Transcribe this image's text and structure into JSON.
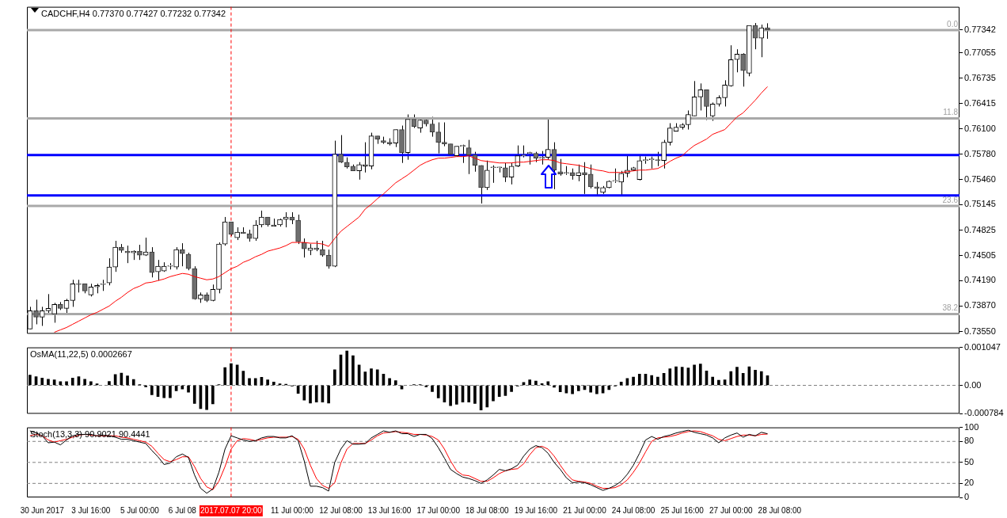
{
  "chart_data": [
    {
      "type": "candlestick",
      "title": "CADCHF,H4 0.77370 0.77427 0.77232 0.77342",
      "categories": [
        null,
        null,
        "30 Jun 2017",
        null,
        null,
        null,
        null,
        null,
        null,
        null,
        "3 Jul 16:00",
        null,
        null,
        null,
        null,
        null,
        null,
        null,
        "5 Jul 00:00",
        null,
        null,
        null,
        null,
        null,
        null,
        "6 Jul 08",
        null,
        null,
        null,
        null,
        null,
        null,
        null,
        "2017.07.07 20:00",
        null,
        null,
        null,
        null,
        null,
        null,
        null,
        null,
        null,
        "11 Jul 00:00",
        null,
        null,
        null,
        null,
        null,
        null,
        null,
        "12 Jul 08:00",
        null,
        null,
        null,
        null,
        null,
        null,
        null,
        "13 Jul 16:00",
        null,
        null,
        null,
        null,
        null,
        null,
        null,
        "17 Jul 00:00",
        null,
        null,
        null,
        null,
        null,
        null,
        null,
        "18 Jul 08:00",
        null,
        null,
        null,
        null,
        null,
        null,
        null,
        "19 Jul 16:00",
        null,
        null,
        null,
        null,
        null,
        null,
        null,
        "21 Jul 00:00",
        null,
        null,
        null,
        null,
        null,
        null,
        null,
        "24 Jul 08:00",
        null,
        null,
        null,
        null,
        null,
        null,
        null,
        "25 Jul 16:00",
        null,
        null,
        null,
        null,
        null,
        null,
        null,
        "27 Jul 00:00",
        null,
        null,
        null,
        null,
        null,
        null,
        null,
        "28 Jul 08:00",
        null,
        null,
        null,
        null,
        null,
        null,
        null,
        null,
        null,
        null,
        null,
        null,
        null,
        null,
        null,
        null,
        null,
        null,
        null,
        null,
        null,
        null,
        null,
        null,
        null,
        null,
        null,
        null,
        null
      ],
      "ohlc": [
        [
          0.7358,
          0.7386,
          0.7358,
          0.7381
        ],
        [
          0.7381,
          0.7395,
          0.7364,
          0.7373
        ],
        [
          0.7373,
          0.7386,
          0.7362,
          0.7381
        ],
        [
          0.7381,
          0.7402,
          0.7378,
          0.7384
        ],
        [
          0.7377,
          0.7391,
          0.7366,
          0.7389
        ],
        [
          0.7389,
          0.7392,
          0.7382,
          0.7384
        ],
        [
          0.7384,
          0.7396,
          0.7378,
          0.7394
        ],
        [
          0.7394,
          0.742,
          0.7386,
          0.7415
        ],
        [
          0.7415,
          0.742,
          0.7404,
          0.7414
        ],
        [
          0.7415,
          0.7415,
          0.7403,
          0.7406
        ],
        [
          0.7401,
          0.7415,
          0.7399,
          0.7411
        ],
        [
          0.7411,
          0.7415,
          0.7403,
          0.7413
        ],
        [
          0.7414,
          0.742,
          0.7406,
          0.7415
        ],
        [
          0.7416,
          0.7447,
          0.7413,
          0.7436
        ],
        [
          0.7436,
          0.7469,
          0.743,
          0.7461
        ],
        [
          0.7461,
          0.7465,
          0.7454,
          0.7457
        ],
        [
          0.7456,
          0.7463,
          0.7441,
          0.7454
        ],
        [
          0.7454,
          0.7457,
          0.7445,
          0.7456
        ],
        [
          0.7456,
          0.7464,
          0.7445,
          0.7451
        ],
        [
          0.7451,
          0.7473,
          0.745,
          0.7455
        ],
        [
          0.7455,
          0.7461,
          0.7423,
          0.7429
        ],
        [
          0.743,
          0.7445,
          0.7419,
          0.7437
        ],
        [
          0.7431,
          0.7442,
          0.743,
          0.7437
        ],
        [
          0.7437,
          0.7441,
          0.7433,
          0.7437
        ],
        [
          0.7436,
          0.7461,
          0.7433,
          0.7458
        ],
        [
          0.7458,
          0.7466,
          0.7437,
          0.7453
        ],
        [
          0.7452,
          0.7454,
          0.7432,
          0.7434
        ],
        [
          0.7434,
          0.7437,
          0.7395,
          0.7396
        ],
        [
          0.7396,
          0.7404,
          0.7391,
          0.7401
        ],
        [
          0.7401,
          0.7404,
          0.7392,
          0.7394
        ],
        [
          0.7394,
          0.7414,
          0.7393,
          0.7408
        ],
        [
          0.7408,
          0.7467,
          0.7403,
          0.7465
        ],
        [
          0.7465,
          0.7499,
          0.7463,
          0.7493
        ],
        [
          0.7493,
          0.7493,
          0.7475,
          0.7477
        ],
        [
          0.7473,
          0.7486,
          0.747,
          0.748
        ],
        [
          0.748,
          0.7486,
          0.7478,
          0.7478
        ],
        [
          0.7478,
          0.7483,
          0.7468,
          0.7472
        ],
        [
          0.7472,
          0.7495,
          0.7469,
          0.7489
        ],
        [
          0.7489,
          0.7507,
          0.7486,
          0.7499
        ],
        [
          0.7499,
          0.7499,
          0.7487,
          0.7489
        ],
        [
          0.7487,
          0.7497,
          0.7487,
          0.7489
        ],
        [
          0.7489,
          0.7497,
          0.7487,
          0.7496
        ],
        [
          0.7496,
          0.7505,
          0.7486,
          0.7499
        ],
        [
          0.7499,
          0.7505,
          0.749,
          0.7495
        ],
        [
          0.7495,
          0.7502,
          0.7465,
          0.7468
        ],
        [
          0.7467,
          0.7472,
          0.7448,
          0.7459
        ],
        [
          0.7457,
          0.7465,
          0.7451,
          0.746
        ],
        [
          0.746,
          0.7469,
          0.7456,
          0.7458
        ],
        [
          0.7458,
          0.7469,
          0.7449,
          0.7451
        ],
        [
          0.7451,
          0.7458,
          0.7434,
          0.7437
        ],
        [
          0.7437,
          0.7595,
          0.7436,
          0.7578
        ],
        [
          0.7578,
          0.7602,
          0.7567,
          0.7568
        ],
        [
          0.7568,
          0.7574,
          0.756,
          0.7562
        ],
        [
          0.7563,
          0.7565,
          0.7557,
          0.7557
        ],
        [
          0.7557,
          0.7568,
          0.7546,
          0.7565
        ],
        [
          0.7563,
          0.7593,
          0.7555,
          0.7565
        ],
        [
          0.7563,
          0.7605,
          0.7559,
          0.7601
        ],
        [
          0.7601,
          0.7601,
          0.7591,
          0.7597
        ],
        [
          0.7595,
          0.76,
          0.7591,
          0.7593
        ],
        [
          0.7593,
          0.7598,
          0.7589,
          0.7591
        ],
        [
          0.7592,
          0.7609,
          0.7587,
          0.7609
        ],
        [
          0.7609,
          0.7614,
          0.7567,
          0.758
        ],
        [
          0.758,
          0.7628,
          0.7571,
          0.7622
        ],
        [
          0.7622,
          0.7628,
          0.7611,
          0.7613
        ],
        [
          0.7611,
          0.7624,
          0.7605,
          0.7621
        ],
        [
          0.7621,
          0.7623,
          0.7613,
          0.7616
        ],
        [
          0.7616,
          0.7625,
          0.76,
          0.7606
        ],
        [
          0.7606,
          0.7618,
          0.7579,
          0.7593
        ],
        [
          0.7593,
          0.7618,
          0.7588,
          0.7591
        ],
        [
          0.7591,
          0.7591,
          0.7577,
          0.7578
        ],
        [
          0.7576,
          0.7588,
          0.7575,
          0.7588
        ],
        [
          0.7588,
          0.759,
          0.7567,
          0.7588
        ],
        [
          0.7586,
          0.7596,
          0.7553,
          0.7577
        ],
        [
          0.7577,
          0.7581,
          0.7556,
          0.7564
        ],
        [
          0.7564,
          0.7564,
          0.7516,
          0.7536
        ],
        [
          0.7536,
          0.757,
          0.7533,
          0.7558
        ],
        [
          0.7561,
          0.7564,
          0.7542,
          0.7562
        ],
        [
          0.7561,
          0.7562,
          0.7555,
          0.7561
        ],
        [
          0.7561,
          0.7567,
          0.7543,
          0.7549
        ],
        [
          0.7549,
          0.7567,
          0.754,
          0.7563
        ],
        [
          0.7563,
          0.7589,
          0.7562,
          0.7576
        ],
        [
          0.7576,
          0.7589,
          0.7574,
          0.7577
        ],
        [
          0.7579,
          0.7581,
          0.7565,
          0.758
        ],
        [
          0.7579,
          0.7581,
          0.7568,
          0.7573
        ],
        [
          0.7573,
          0.7582,
          0.7565,
          0.7574
        ],
        [
          0.7574,
          0.7624,
          0.7571,
          0.7584
        ],
        [
          0.7584,
          0.7593,
          0.7534,
          0.7558
        ],
        [
          0.7556,
          0.7572,
          0.7551,
          0.7553
        ],
        [
          0.7554,
          0.7563,
          0.7552,
          0.7554
        ],
        [
          0.7555,
          0.756,
          0.7546,
          0.7551
        ],
        [
          0.7551,
          0.7565,
          0.7544,
          0.7555
        ],
        [
          0.7555,
          0.7568,
          0.7528,
          0.7552
        ],
        [
          0.7553,
          0.7565,
          0.7535,
          0.7537
        ],
        [
          0.7537,
          0.7543,
          0.7527,
          0.7535
        ],
        [
          0.753,
          0.7538,
          0.7528,
          0.7536
        ],
        [
          0.7536,
          0.7545,
          0.7535,
          0.7544
        ],
        [
          0.7544,
          0.756,
          0.7542,
          0.7545
        ],
        [
          0.7543,
          0.7557,
          0.7526,
          0.7554
        ],
        [
          0.7554,
          0.7577,
          0.7549,
          0.7558
        ],
        [
          0.7558,
          0.7562,
          0.7557,
          0.7561
        ],
        [
          0.7546,
          0.7577,
          0.7545,
          0.757
        ],
        [
          0.757,
          0.7575,
          0.7566,
          0.7571
        ],
        [
          0.7571,
          0.7575,
          0.756,
          0.7571
        ],
        [
          0.7571,
          0.7581,
          0.7563,
          0.757
        ],
        [
          0.757,
          0.7596,
          0.756,
          0.7593
        ],
        [
          0.7593,
          0.7617,
          0.7589,
          0.7611
        ],
        [
          0.7607,
          0.7617,
          0.7607,
          0.7612
        ],
        [
          0.7612,
          0.7617,
          0.7609,
          0.7615
        ],
        [
          0.7615,
          0.7633,
          0.7609,
          0.7628
        ],
        [
          0.7626,
          0.767,
          0.7626,
          0.765
        ],
        [
          0.765,
          0.7667,
          0.7633,
          0.7659
        ],
        [
          0.7659,
          0.7659,
          0.7621,
          0.7638
        ],
        [
          0.7626,
          0.7643,
          0.762,
          0.7641
        ],
        [
          0.7641,
          0.7652,
          0.7638,
          0.7649
        ],
        [
          0.7649,
          0.7671,
          0.7638,
          0.7665
        ],
        [
          0.7664,
          0.7715,
          0.7663,
          0.7697
        ],
        [
          0.7697,
          0.771,
          0.7681,
          0.7704
        ],
        [
          0.7704,
          0.7705,
          0.7663,
          0.7683
        ],
        [
          0.768,
          0.774,
          0.7676,
          0.774
        ],
        [
          0.774,
          0.7743,
          0.771,
          0.7724
        ],
        [
          0.7724,
          0.7741,
          0.77,
          0.7737
        ],
        [
          0.7737,
          0.77427,
          0.77232,
          0.77342
        ],
        null,
        null,
        null,
        null,
        null,
        null,
        null,
        null,
        null,
        null,
        null,
        null,
        null,
        null,
        null,
        null,
        null,
        null,
        null,
        null,
        null,
        null,
        null,
        null,
        null,
        null,
        null,
        null,
        null,
        null,
        null
      ],
      "series": [
        {
          "type": "line",
          "color": "#ff0000",
          "values": [
            null,
            null,
            null,
            null,
            0.7354,
            0.7357,
            0.736,
            0.7364,
            0.7368,
            0.7372,
            0.7376,
            0.7379,
            0.7383,
            0.7387,
            0.7393,
            0.7398,
            0.7404,
            0.7409,
            0.7412,
            0.7416,
            0.7417,
            0.7419,
            0.7421,
            0.7424,
            0.7426,
            0.7428,
            0.7427,
            0.7424,
            0.7422,
            0.742,
            0.7421,
            0.7424,
            0.7429,
            0.7434,
            0.7437,
            0.7442,
            0.7445,
            0.7449,
            0.7452,
            0.7456,
            0.7458,
            0.746,
            0.7463,
            0.7467,
            0.7467,
            0.7467,
            0.7466,
            0.7466,
            0.7465,
            0.7462,
            0.7472,
            0.7481,
            0.7487,
            0.7493,
            0.7499,
            0.7509,
            0.7515,
            0.7522,
            0.7528,
            0.7535,
            0.7542,
            0.7547,
            0.7552,
            0.7558,
            0.7564,
            0.7568,
            0.7571,
            0.7573,
            0.7573,
            0.7574,
            0.7575,
            0.7575,
            0.7576,
            0.7573,
            0.757,
            0.7569,
            0.7568,
            0.7567,
            0.7567,
            0.7567,
            0.7568,
            0.7568,
            0.7569,
            0.757,
            0.7571,
            0.7571,
            0.757,
            0.7567,
            0.7566,
            0.7565,
            0.7564,
            0.7562,
            0.756,
            0.7558,
            0.7557,
            0.7555,
            0.7555,
            0.7555,
            0.7556,
            0.7557,
            0.7558,
            0.7558,
            0.7559,
            0.756,
            0.7564,
            0.7569,
            0.7573,
            0.7576,
            0.7583,
            0.7589,
            0.7593,
            0.7597,
            0.7603,
            0.7606,
            0.7609,
            0.7617,
            0.7625,
            0.763,
            0.7638,
            0.7646,
            0.7655,
            0.7663,
            null,
            null,
            null,
            null,
            null,
            null,
            null,
            null,
            null,
            null,
            null,
            null,
            null,
            null,
            null,
            null,
            null,
            null,
            null,
            null,
            null,
            null,
            null,
            null,
            null,
            null,
            null,
            null,
            null,
            null,
            null
          ]
        }
      ],
      "ylim": [
        0.73521,
        0.77634
      ],
      "yticks": [
        {
          "value": 0.7355,
          "label": "0.73550"
        },
        {
          "value": 0.7387,
          "label": "0.73870"
        },
        {
          "value": 0.7419,
          "label": "0.74190"
        },
        {
          "value": 0.74505,
          "label": "0.74505"
        },
        {
          "value": 0.74825,
          "label": "0.74825"
        },
        {
          "value": 0.75145,
          "label": "0.75145"
        },
        {
          "value": 0.7546,
          "label": "0.75460"
        },
        {
          "value": 0.7578,
          "label": "0.75780"
        },
        {
          "value": 0.761,
          "label": "0.76100"
        },
        {
          "value": 0.76415,
          "label": "0.76415"
        },
        {
          "value": 0.76735,
          "label": "0.76735"
        },
        {
          "value": 0.77055,
          "label": "0.77055"
        },
        {
          "value": 0.77342,
          "label": "0.77342"
        }
      ],
      "tick_labels": "y",
      "annotations": [
        {
          "text": "0.0",
          "y": 0.7734
        },
        {
          "text": "11.8",
          "y": 0.7623
        },
        {
          "text": "23.6",
          "y": 0.7513
        },
        {
          "text": "38.2",
          "y": 0.7377
        }
      ],
      "ref_lines": [
        {
          "axis": "y",
          "value": 0.7734,
          "color": "#a9a9a9"
        },
        {
          "axis": "y",
          "value": 0.7623,
          "color": "#a9a9a9"
        },
        {
          "axis": "y",
          "value": 0.7513,
          "color": "#a9a9a9"
        },
        {
          "axis": "y",
          "value": 0.7377,
          "color": "#a9a9a9"
        },
        {
          "axis": "y",
          "value": 0.7577,
          "color": "#0000ff"
        },
        {
          "axis": "y",
          "value": 0.7526,
          "color": "#0000ff"
        },
        {
          "axis": "x",
          "value": "2017.07.07 20:00",
          "color": "#ff0000",
          "line_style": "dashed"
        }
      ]
    },
    {
      "type": "bar",
      "title": "OsMA(11,22,5) 0.0002667",
      "categories": [
        null,
        null,
        "30 Jun 2017",
        null,
        null,
        null,
        null,
        null,
        null,
        null,
        "3 Jul 16:00",
        null,
        null,
        null,
        null,
        null,
        null,
        null,
        "5 Jul 00:00",
        null,
        null,
        null,
        null,
        null,
        null,
        "6 Jul 08",
        null,
        null,
        null,
        null,
        null,
        null,
        null,
        "2017.07.07 20:00",
        null,
        null,
        null,
        null,
        null,
        null,
        null,
        null,
        null,
        "11 Jul 00:00",
        null,
        null,
        null,
        null,
        null,
        null,
        null,
        "12 Jul 08:00",
        null,
        null,
        null,
        null,
        null,
        null,
        null,
        "13 Jul 16:00",
        null,
        null,
        null,
        null,
        null,
        null,
        null,
        "17 Jul 00:00",
        null,
        null,
        null,
        null,
        null,
        null,
        null,
        "18 Jul 08:00",
        null,
        null,
        null,
        null,
        null,
        null,
        null,
        "19 Jul 16:00",
        null,
        null,
        null,
        null,
        null,
        null,
        null,
        "21 Jul 00:00",
        null,
        null,
        null,
        null,
        null,
        null,
        null,
        "24 Jul 08:00",
        null,
        null,
        null,
        null,
        null,
        null,
        null,
        "25 Jul 16:00",
        null,
        null,
        null,
        null,
        null,
        null,
        null,
        "27 Jul 00:00",
        null,
        null,
        null,
        null,
        null,
        null,
        null,
        "28 Jul 08:00",
        null,
        null,
        null,
        null,
        null,
        null,
        null,
        null,
        null,
        null,
        null,
        null,
        null,
        null,
        null,
        null,
        null,
        null,
        null,
        null,
        null,
        null,
        null,
        null,
        null,
        null,
        null,
        null,
        null
      ],
      "values": [
        0.00028,
        0.00024,
        0.0002,
        0.00017,
        0.00015,
        0.0001,
        0.0001,
        0.0002,
        0.00024,
        0.00017,
        0.0001,
        4e-05,
        null,
        0.00011,
        0.0003,
        0.00034,
        0.00026,
        0.00016,
        2e-05,
        -4e-05,
        -0.00026,
        -0.00031,
        -0.00034,
        -0.00034,
        -0.00015,
        -0.0001,
        -0.00019,
        -0.0005,
        -0.00064,
        -0.00067,
        -0.00051,
        2e-05,
        0.00049,
        0.0006,
        0.00056,
        0.00039,
        0.00019,
        0.00019,
        0.00022,
        0.00015,
        9e-05,
        4e-05,
        3e-05,
        -2e-05,
        -0.00022,
        -0.00041,
        -0.00049,
        -0.00046,
        -0.00046,
        -0.00049,
        0.00043,
        0.00084,
        0.00095,
        0.00082,
        0.00056,
        0.00037,
        0.00046,
        0.00043,
        0.00031,
        0.00019,
        0.00013,
        -0.0001,
        null,
        2e-05,
        2e-05,
        -4e-05,
        -0.00017,
        -0.00035,
        -0.00046,
        -0.00056,
        -0.00052,
        -0.00046,
        -0.00046,
        -0.0005,
        -0.00068,
        -0.0006,
        -0.00043,
        -0.00031,
        -0.00028,
        -0.00017,
        -2e-05,
        8e-05,
        0.00015,
        0.00012,
        5e-05,
        0.0001,
        -5e-05,
        -0.00018,
        -0.00021,
        -0.00023,
        -0.00015,
        -0.00012,
        -0.00019,
        -0.00023,
        -0.00021,
        -0.00012,
        -2e-05,
        9e-05,
        0.00019,
        0.00023,
        0.00031,
        0.00031,
        0.00027,
        0.00023,
        0.00033,
        0.00046,
        0.00051,
        0.0005,
        0.00048,
        0.00056,
        0.00059,
        0.0004,
        0.00023,
        0.00014,
        0.00015,
        0.00038,
        0.0005,
        0.00033,
        0.00051,
        0.00042,
        0.00038,
        0.0002667,
        null,
        null,
        null,
        null,
        null,
        null,
        null,
        null,
        null,
        null,
        null,
        null,
        null,
        null,
        null,
        null,
        null,
        null,
        null,
        null,
        null,
        null,
        null,
        null,
        null,
        null,
        null,
        null,
        null,
        null,
        null
      ],
      "color": "#000000",
      "ylim": [
        -0.000784,
        0.001047
      ],
      "yticks": [
        {
          "value": 0.001047,
          "label": "0.001047"
        },
        {
          "value": 0,
          "label": "0.00"
        },
        {
          "value": -0.000784,
          "label": "-0.000784"
        }
      ],
      "tick_labels": "y",
      "ref_lines": [
        {
          "axis": "y",
          "value": 0,
          "color": "#808080",
          "line_style": "dashed"
        },
        {
          "axis": "x",
          "value": "2017.07.07 20:00",
          "color": "#ff0000",
          "line_style": "dashed"
        }
      ]
    },
    {
      "type": "line",
      "title": "Stoch(13,3,3) 90.9021 90.4441",
      "categories": [
        null,
        null,
        "30 Jun 2017",
        null,
        null,
        null,
        null,
        null,
        null,
        null,
        "3 Jul 16:00",
        null,
        null,
        null,
        null,
        null,
        null,
        null,
        "5 Jul 00:00",
        null,
        null,
        null,
        null,
        null,
        null,
        "6 Jul 08",
        null,
        null,
        null,
        null,
        null,
        null,
        null,
        "2017.07.07 20:00",
        null,
        null,
        null,
        null,
        null,
        null,
        null,
        null,
        null,
        "11 Jul 00:00",
        null,
        null,
        null,
        null,
        null,
        null,
        null,
        "12 Jul 08:00",
        null,
        null,
        null,
        null,
        null,
        null,
        null,
        "13 Jul 16:00",
        null,
        null,
        null,
        null,
        null,
        null,
        null,
        "17 Jul 00:00",
        null,
        null,
        null,
        null,
        null,
        null,
        null,
        "18 Jul 08:00",
        null,
        null,
        null,
        null,
        null,
        null,
        null,
        "19 Jul 16:00",
        null,
        null,
        null,
        null,
        null,
        null,
        null,
        "21 Jul 00:00",
        null,
        null,
        null,
        null,
        null,
        null,
        null,
        "24 Jul 08:00",
        null,
        null,
        null,
        null,
        null,
        null,
        null,
        "25 Jul 16:00",
        null,
        null,
        null,
        null,
        null,
        null,
        null,
        "27 Jul 00:00",
        null,
        null,
        null,
        null,
        null,
        null,
        null,
        "28 Jul 08:00",
        null,
        null,
        null,
        null,
        null,
        null,
        null,
        null,
        null,
        null,
        null,
        null,
        null,
        null,
        null,
        null,
        null,
        null,
        null,
        null,
        null,
        null,
        null,
        null,
        null,
        null,
        null,
        null,
        null
      ],
      "series": [
        {
          "color": "#000000",
          "values": [
            95,
            92,
            88,
            78,
            79,
            75,
            82,
            88,
            90,
            90,
            90,
            88,
            89,
            88,
            86,
            83,
            83,
            81,
            79,
            77,
            67,
            58,
            47,
            49,
            58,
            62,
            57,
            32,
            13,
            6,
            12,
            36,
            69,
            88,
            85,
            82,
            80,
            81,
            85,
            87,
            87,
            85,
            85,
            88,
            81,
            52,
            16,
            16,
            14,
            9,
            50,
            69,
            81,
            76,
            76,
            77,
            85,
            90,
            95,
            93,
            95,
            91,
            91,
            87,
            90,
            90,
            84,
            71,
            56,
            40,
            34,
            29,
            27,
            24,
            20,
            25,
            32,
            40,
            38,
            41,
            46,
            59,
            69,
            74,
            71,
            63,
            50,
            40,
            28,
            21,
            22,
            21,
            18,
            14,
            10,
            13,
            17,
            23,
            33,
            46,
            63,
            82,
            87,
            83,
            87,
            89,
            92,
            94,
            96,
            93,
            91,
            89,
            85,
            78,
            85,
            89,
            92,
            86,
            90,
            88,
            93,
            90.9021,
            null,
            null,
            null,
            null,
            null,
            null,
            null,
            null,
            null,
            null,
            null,
            null,
            null,
            null,
            null,
            null,
            null,
            null,
            null,
            null,
            null,
            null,
            null,
            null,
            null,
            null,
            null,
            null,
            null,
            null,
            null
          ]
        },
        {
          "color": "#ff0000",
          "values": [
            88,
            90,
            88,
            82,
            79,
            81,
            83,
            86,
            89,
            90,
            89,
            88,
            88,
            88,
            88,
            86,
            85,
            83,
            81,
            79,
            73,
            63,
            54,
            51,
            54,
            58,
            58,
            44,
            27,
            15,
            11,
            23,
            44,
            69,
            81,
            84,
            83,
            81,
            83,
            85,
            86,
            86,
            86,
            87,
            83,
            69,
            46,
            27,
            17,
            13,
            21,
            49,
            69,
            77,
            77,
            77,
            82,
            88,
            92,
            93,
            94,
            93,
            92,
            90,
            90,
            89,
            87,
            82,
            69,
            52,
            38,
            32,
            31,
            27,
            23,
            23,
            28,
            34,
            38,
            40,
            41,
            48,
            61,
            71,
            73,
            69,
            59,
            46,
            34,
            25,
            23,
            22,
            20,
            16,
            13,
            13,
            14,
            18,
            25,
            36,
            49,
            65,
            80,
            85,
            86,
            87,
            89,
            92,
            94,
            95,
            94,
            91,
            88,
            83,
            81,
            84,
            87,
            89,
            89,
            88,
            90,
            90.4441,
            null,
            null,
            null,
            null,
            null,
            null,
            null,
            null,
            null,
            null,
            null,
            null,
            null,
            null,
            null,
            null,
            null,
            null,
            null,
            null,
            null,
            null,
            null,
            null,
            null,
            null,
            null,
            null,
            null,
            null,
            null
          ]
        }
      ],
      "ylim": [
        0,
        100
      ],
      "yticks": [
        0,
        20,
        50,
        80,
        100
      ],
      "ref_lines": [
        {
          "axis": "y",
          "value": 80,
          "color": "#808080",
          "line_style": "dashed"
        },
        {
          "axis": "y",
          "value": 50,
          "color": "#808080",
          "line_style": "dashed"
        },
        {
          "axis": "y",
          "value": 20,
          "color": "#808080",
          "line_style": "dashed"
        },
        {
          "axis": "x",
          "value": "2017.07.07 20:00",
          "color": "#ff0000",
          "line_style": "dashed"
        }
      ]
    }
  ]
}
